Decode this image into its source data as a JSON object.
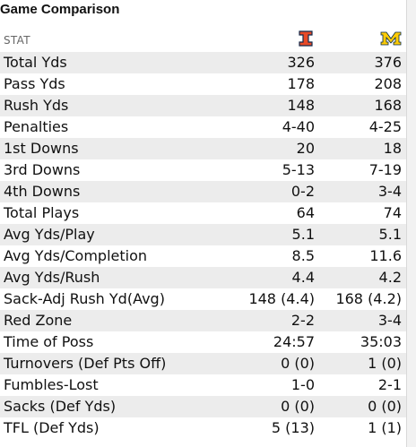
{
  "title": "Game Comparison",
  "header": {
    "stat_label": "STAT",
    "team_a_logo": "illinois-block-i-logo",
    "team_b_logo": "michigan-block-m-logo",
    "team_a_color": "#e84a27",
    "team_b_color": "#ffcb05"
  },
  "rows": [
    {
      "stat": "Total Yds",
      "a": "326",
      "b": "376"
    },
    {
      "stat": "Pass Yds",
      "a": "178",
      "b": "208"
    },
    {
      "stat": "Rush Yds",
      "a": "148",
      "b": "168"
    },
    {
      "stat": "Penalties",
      "a": "4-40",
      "b": "4-25"
    },
    {
      "stat": "1st Downs",
      "a": "20",
      "b": "18"
    },
    {
      "stat": "3rd Downs",
      "a": "5-13",
      "b": "7-19"
    },
    {
      "stat": "4th Downs",
      "a": "0-2",
      "b": "3-4"
    },
    {
      "stat": "Total Plays",
      "a": "64",
      "b": "74"
    },
    {
      "stat": "Avg Yds/Play",
      "a": "5.1",
      "b": "5.1"
    },
    {
      "stat": "Avg Yds/Completion",
      "a": "8.5",
      "b": "11.6"
    },
    {
      "stat": "Avg Yds/Rush",
      "a": "4.4",
      "b": "4.2"
    },
    {
      "stat": "Sack-Adj Rush Yd(Avg)",
      "a": "148 (4.4)",
      "b": "168 (4.2)"
    },
    {
      "stat": "Red Zone",
      "a": "2-2",
      "b": "3-4"
    },
    {
      "stat": "Time of Poss",
      "a": "24:57",
      "b": "35:03"
    },
    {
      "stat": "Turnovers (Def Pts Off)",
      "a": "0 (0)",
      "b": "1 (0)"
    },
    {
      "stat": "Fumbles-Lost",
      "a": "1-0",
      "b": "2-1"
    },
    {
      "stat": "Sacks (Def Yds)",
      "a": "0 (0)",
      "b": "0 (0)"
    },
    {
      "stat": "TFL (Def Yds)",
      "a": "5 (13)",
      "b": "1 (1)"
    }
  ]
}
